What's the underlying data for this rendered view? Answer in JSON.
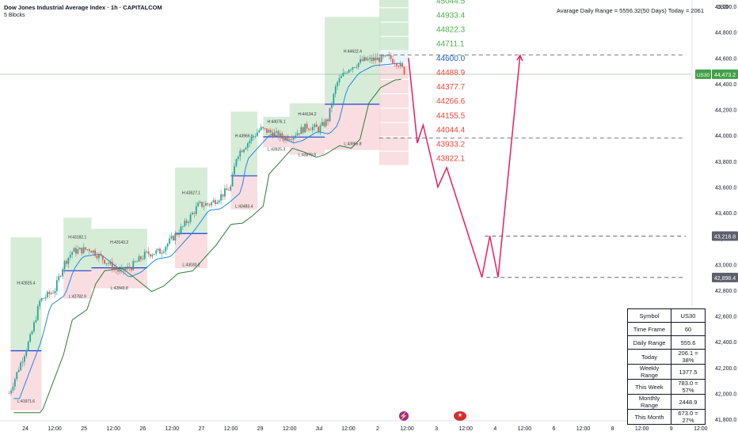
{
  "header": {
    "title": "Dow Jones Industrial Average Index · 1h · CAPITALCOM",
    "subtitle": "5 Blocks",
    "adr_text": "Avarage Daily Range = 5556.32(50 Days) Today = 2061",
    "currency": "USD"
  },
  "colors": {
    "candle_up": "#26a69a",
    "candle_down": "#ef5350",
    "green_box": "#c8e6c9",
    "red_box": "#f8d7da",
    "ema_fast": "#1e88e5",
    "ema_slow": "#2e7d32",
    "projection": "#e91e63",
    "level_up": "#4caf50",
    "level_down": "#f44336",
    "level_mid": "#1565c0"
  },
  "chart_data": {
    "type": "candlestick",
    "symbol": "US30",
    "timeframe": "1h",
    "ylim": [
      41800,
      45150
    ],
    "y_ticks": [
      {
        "value": 41800,
        "label": "41,800.0"
      },
      {
        "value": 42000,
        "label": "42,000.0"
      },
      {
        "value": 42200,
        "label": "42,200.0"
      },
      {
        "value": 42400,
        "label": "42,400.0"
      },
      {
        "value": 42600,
        "label": "42,600.0"
      },
      {
        "value": 42800,
        "label": "42,800.0"
      },
      {
        "value": 43000,
        "label": "43,000.0"
      },
      {
        "value": 43200,
        "label": "43,200.0"
      },
      {
        "value": 43400,
        "label": "43,400.0"
      },
      {
        "value": 43600,
        "label": "43,600.0"
      },
      {
        "value": 43800,
        "label": "43,800.0"
      },
      {
        "value": 44000,
        "label": "44,000.0"
      },
      {
        "value": 44200,
        "label": "44,200.0"
      },
      {
        "value": 44400,
        "label": "44,400.0"
      },
      {
        "value": 44600,
        "label": "44,600.0"
      },
      {
        "value": 44800,
        "label": "44,800.0"
      },
      {
        "value": 45000,
        "label": "45,000.0"
      }
    ],
    "x_ticks": [
      {
        "x": 0,
        "label": "24"
      },
      {
        "x": 1,
        "label": "12:00"
      },
      {
        "x": 2,
        "label": "25"
      },
      {
        "x": 3,
        "label": "12:00"
      },
      {
        "x": 4,
        "label": "26"
      },
      {
        "x": 5,
        "label": "12:00"
      },
      {
        "x": 6,
        "label": "27"
      },
      {
        "x": 7,
        "label": "12:00"
      },
      {
        "x": 8,
        "label": "29"
      },
      {
        "x": 9,
        "label": "12:00"
      },
      {
        "x": 10,
        "label": "Jul"
      },
      {
        "x": 11,
        "label": "12:00"
      },
      {
        "x": 12,
        "label": "2"
      },
      {
        "x": 13,
        "label": "12:00"
      },
      {
        "x": 14,
        "label": "3"
      },
      {
        "x": 15,
        "label": "12:00"
      },
      {
        "x": 16,
        "label": "4"
      },
      {
        "x": 17,
        "label": "12:00"
      },
      {
        "x": 18,
        "label": "6"
      },
      {
        "x": 19,
        "label": "12:00"
      },
      {
        "x": 20,
        "label": "8"
      },
      {
        "x": 21,
        "label": "12:00"
      },
      {
        "x": 22,
        "label": "9"
      },
      {
        "x": 23,
        "label": "12:00"
      }
    ],
    "day_blocks": [
      {
        "x0": -0.5,
        "x1": 0.55,
        "high": 42825.4,
        "low": 41971.6,
        "high_label": "H:42825.4",
        "low_label": "L:41971.6"
      },
      {
        "x0": 1.3,
        "x1": 2.25,
        "high": 43182.1,
        "low": 42782.9,
        "high_label": "H:43182.1",
        "low_label": "L:42782.9"
      },
      {
        "x0": 2.25,
        "x1": 4.15,
        "high": 43143.2,
        "low": 42849.8,
        "high_label": "H:43143.2",
        "low_label": "L:42849.8"
      },
      {
        "x0": 5.1,
        "x1": 6.2,
        "high": 43527.1,
        "low": 43030.2,
        "high_label": "H:43527.1",
        "low_label": "L:43030.2"
      },
      {
        "x0": 7.0,
        "x1": 7.9,
        "high": 43966.6,
        "low": 43483.4,
        "high_label": "H:43966.6",
        "low_label": "L:43483.4"
      },
      {
        "x0": 8.1,
        "x1": 9.0,
        "high": 44076.1,
        "low": 43925.3,
        "high_label": "H:44076.1",
        "low_label": "L:43925.3"
      },
      {
        "x0": 9.0,
        "x1": 10.2,
        "high": 44134.2,
        "low": 43879.8,
        "high_label": "H:44134.2",
        "low_label": "L:43879.8"
      },
      {
        "x0": 10.2,
        "x1": 12.1,
        "high": 44622.4,
        "low": 43965.8,
        "high_label": "H:44622.4",
        "low_label": "L:43965.8"
      }
    ],
    "levels": [
      {
        "value": 45044.5,
        "label": "45044.5",
        "kind": "up"
      },
      {
        "value": 44933.4,
        "label": "44933.4",
        "kind": "up"
      },
      {
        "value": 44822.3,
        "label": "44822.3",
        "kind": "up"
      },
      {
        "value": 44711.1,
        "label": "44711.1",
        "kind": "up"
      },
      {
        "value": 44600.0,
        "label": "44600.0",
        "kind": "mid"
      },
      {
        "value": 44488.9,
        "label": "44488.9",
        "kind": "down"
      },
      {
        "value": 44377.7,
        "label": "44377.7",
        "kind": "down"
      },
      {
        "value": 44266.6,
        "label": "44266.6",
        "kind": "down"
      },
      {
        "value": 44155.5,
        "label": "44155.5",
        "kind": "down"
      },
      {
        "value": 44044.4,
        "label": "44044.4",
        "kind": "down"
      },
      {
        "value": 43933.2,
        "label": "43933.2",
        "kind": "down"
      },
      {
        "value": 43822.1,
        "label": "43822.1",
        "kind": "down"
      }
    ],
    "dashed_levels": [
      {
        "value": 44622.4,
        "x_start": 12.05
      },
      {
        "value": 43980,
        "x_start": 12.05
      },
      {
        "value": 43218.8,
        "x_start": 15.65
      },
      {
        "value": 42898.4,
        "x_start": 15.7
      }
    ],
    "price_tags": [
      {
        "value": 44473.2,
        "label": "44,473.2",
        "kind": "current"
      },
      {
        "value": 43218.8,
        "label": "43,218.8",
        "kind": "level"
      },
      {
        "value": 42898.4,
        "label": "42,898.4",
        "kind": "level"
      }
    ],
    "current_price": 44473.2,
    "current_symbol": "US30",
    "projection": [
      [
        13.05,
        44600
      ],
      [
        13.35,
        43940
      ],
      [
        13.55,
        44080
      ],
      [
        14.05,
        43600
      ],
      [
        14.35,
        43750
      ],
      [
        15.55,
        42900
      ],
      [
        15.82,
        43220
      ],
      [
        16.1,
        42900
      ],
      [
        16.85,
        44620
      ]
    ]
  },
  "stats_table": [
    {
      "label": "Symbol",
      "value": "US30"
    },
    {
      "label": "Time Frame",
      "value": "60"
    },
    {
      "label": "Daily Range",
      "value": "555.6"
    },
    {
      "label": "Today",
      "value": "206.1 = 38%"
    },
    {
      "label": "Weekly Range",
      "value": "1377.5"
    },
    {
      "label": "This Week",
      "value": "783.0 = 57%"
    },
    {
      "label": "Monthly Range",
      "value": "2448.9"
    },
    {
      "label": "This Month",
      "value": "673.0 = 27%"
    }
  ],
  "icons": {
    "event_flash": "lightning-icon",
    "event_flag": "us-flag-icon"
  }
}
